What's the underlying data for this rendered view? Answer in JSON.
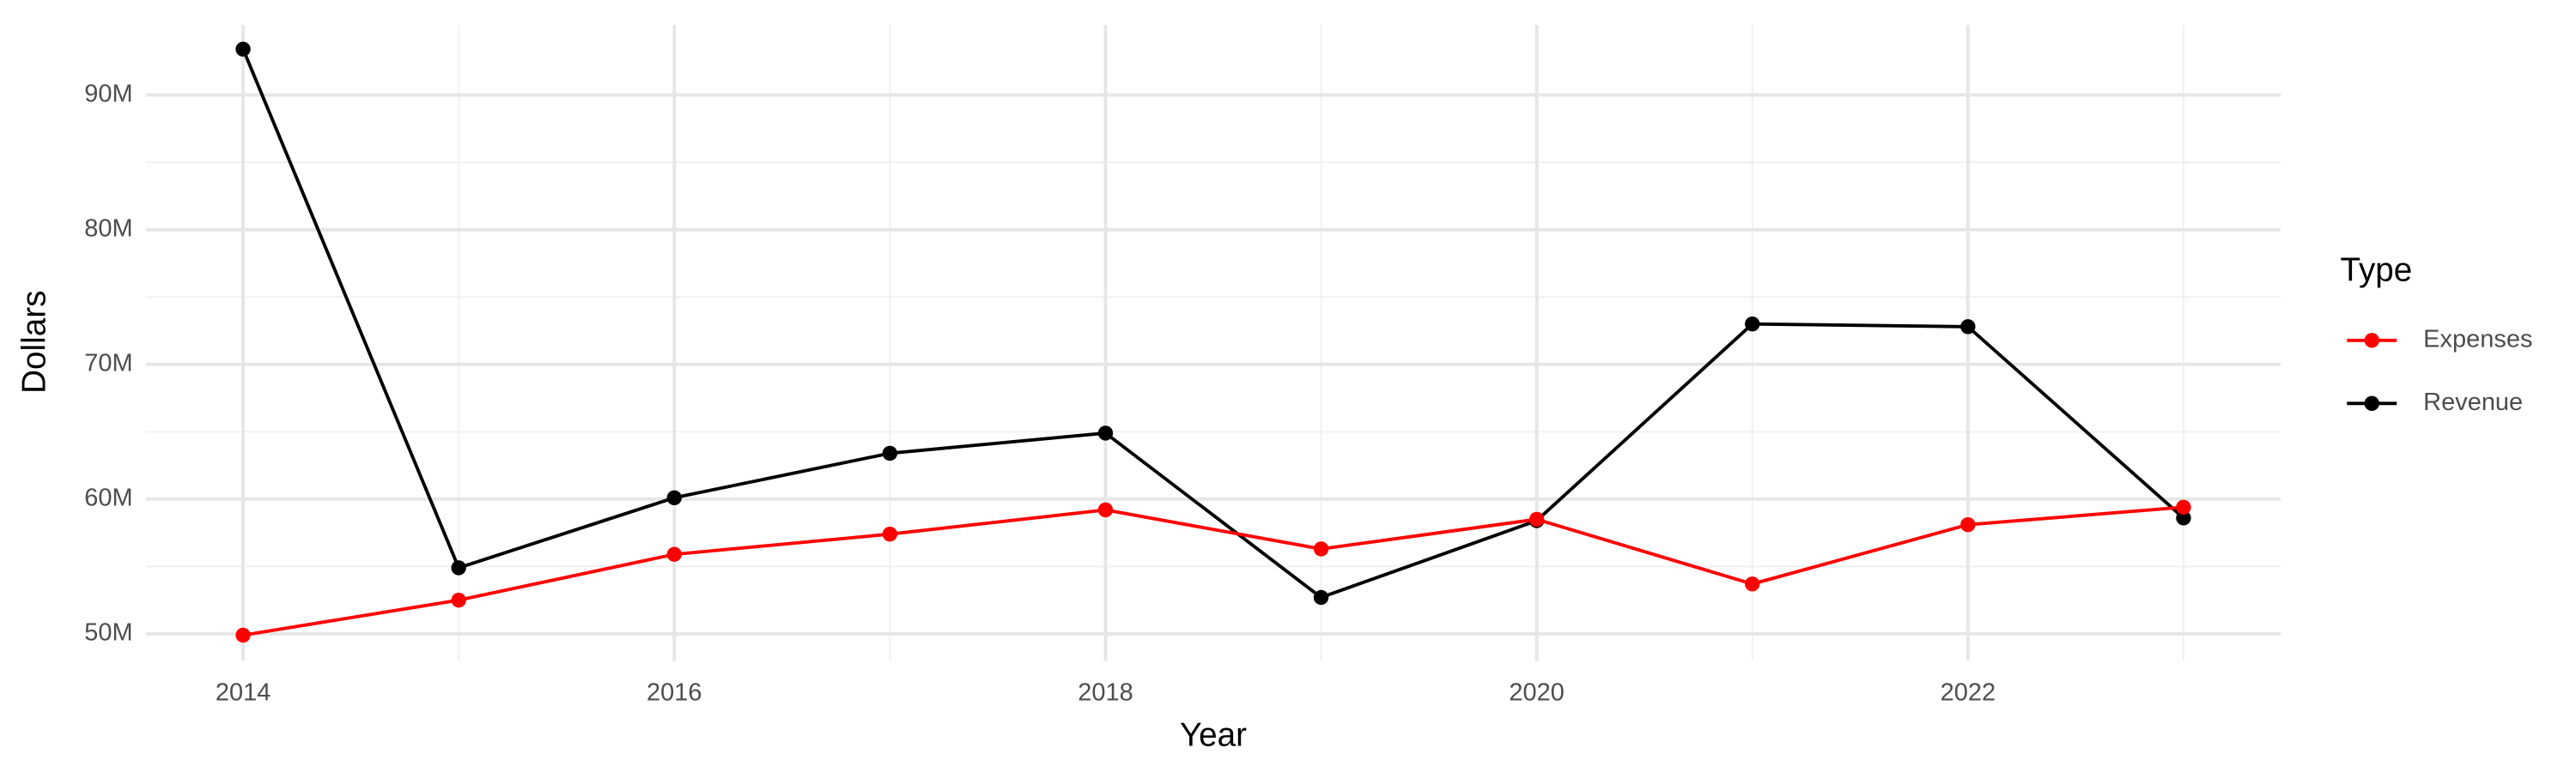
{
  "chart_data": {
    "type": "line",
    "x_label": "Year",
    "y_label": "Dollars",
    "legend_title": "Type",
    "legend_position": "right",
    "grid": true,
    "x": [
      2014,
      2015,
      2016,
      2017,
      2018,
      2019,
      2020,
      2021,
      2022,
      2023
    ],
    "series": [
      {
        "name": "Expenses",
        "color": "#ff0000",
        "values": [
          49900000,
          52500000,
          55900000,
          57400000,
          59200000,
          56300000,
          58500000,
          53700000,
          58100000,
          59400000
        ]
      },
      {
        "name": "Revenue",
        "color": "#000000",
        "values": [
          93400000,
          54900000,
          60100000,
          63400000,
          64900000,
          52700000,
          58400000,
          73000000,
          72800000,
          58600000
        ]
      }
    ],
    "xlim": [
      2013.55,
      2023.45
    ],
    "xticks": [
      2014,
      2016,
      2018,
      2020,
      2022
    ],
    "minor_xticks": [
      2015,
      2017,
      2019,
      2021,
      2023
    ],
    "ylim": [
      48000000,
      95200000
    ],
    "yticks": [
      {
        "value": 50000000,
        "label": "50M"
      },
      {
        "value": 60000000,
        "label": "60M"
      },
      {
        "value": 70000000,
        "label": "70M"
      },
      {
        "value": 80000000,
        "label": "80M"
      },
      {
        "value": 90000000,
        "label": "90M"
      }
    ],
    "minor_yticks": [
      55000000,
      65000000,
      75000000,
      85000000
    ]
  }
}
